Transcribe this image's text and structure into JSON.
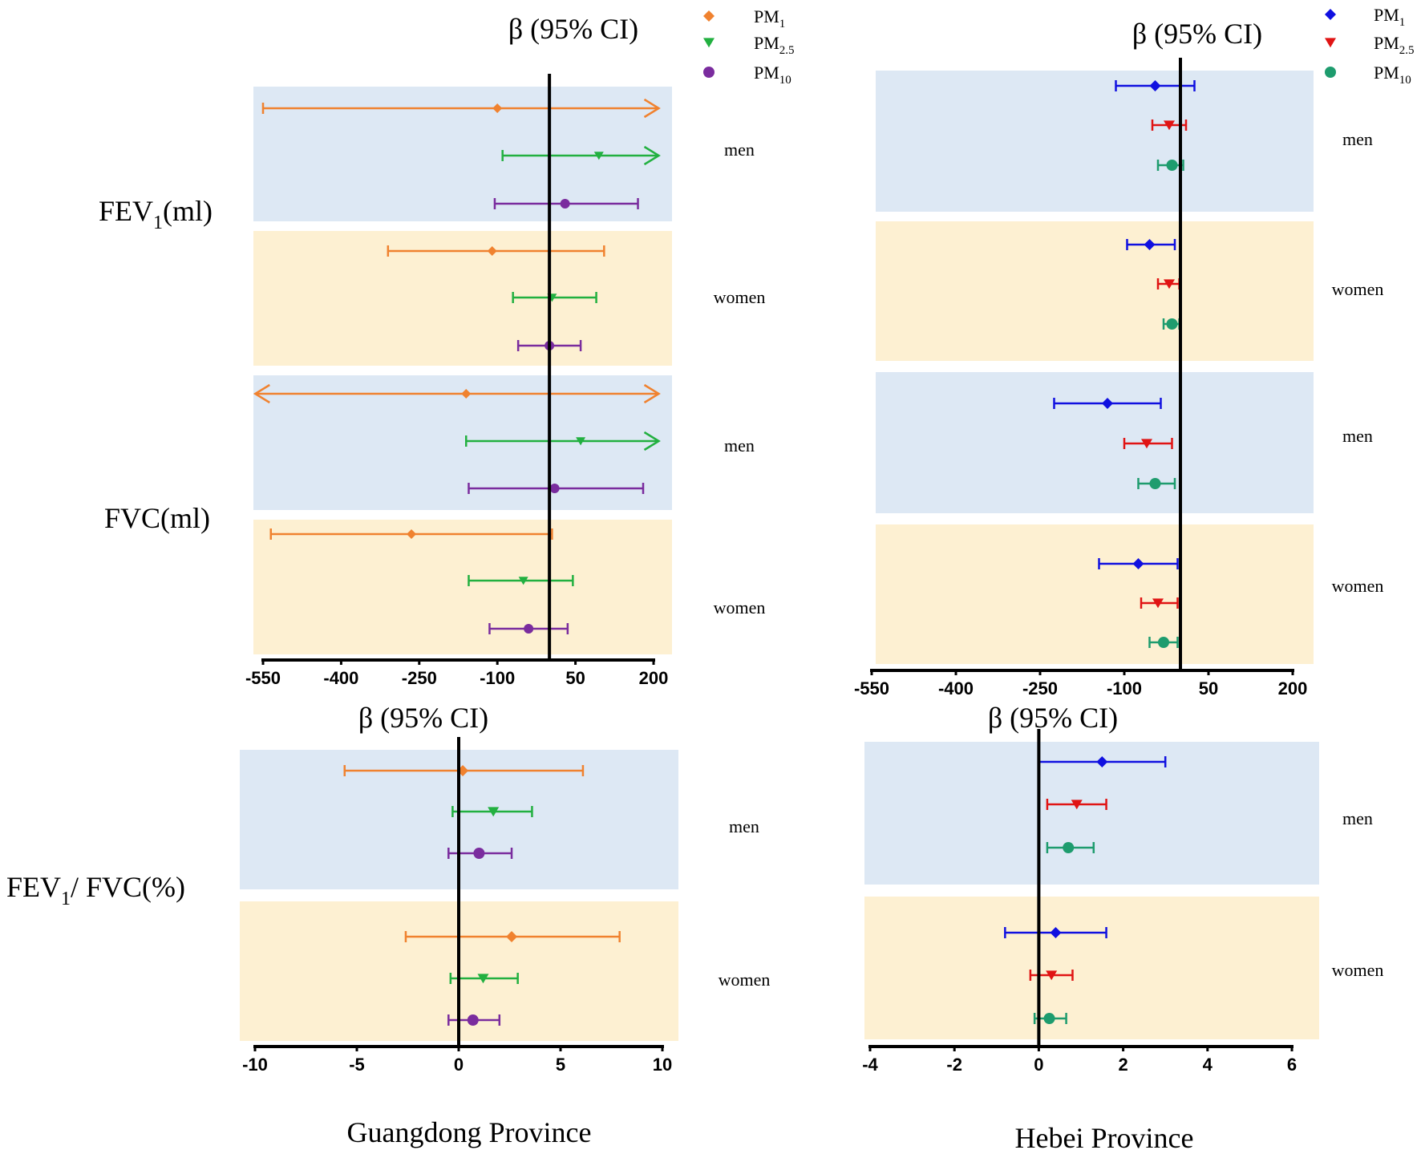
{
  "ci_title": "β (95% CI)",
  "group_labels": {
    "men": "men",
    "women": "women"
  },
  "colors": {
    "men_band": "#dde8f4",
    "women_band": "#fdf0d2",
    "guangdong": {
      "PM1": "#f0822f",
      "PM2.5": "#22b040",
      "PM10": "#7a2c9e"
    },
    "hebei": {
      "PM1": "#1010e0",
      "PM2.5": "#e01414",
      "PM10": "#1e9c6e"
    }
  },
  "legend": {
    "guangdong": [
      {
        "base": "PM",
        "sub": "1",
        "marker": "diamond"
      },
      {
        "base": "PM",
        "sub": "2.5",
        "marker": "triangle"
      },
      {
        "base": "PM",
        "sub": "10",
        "marker": "circle"
      }
    ],
    "hebei": [
      {
        "base": "PM",
        "sub": "1",
        "marker": "diamond"
      },
      {
        "base": "PM",
        "sub": "2.5",
        "marker": "triangle"
      },
      {
        "base": "PM",
        "sub": "10",
        "marker": "circle"
      }
    ]
  },
  "outcome_labels": {
    "fev1": {
      "base": "FEV",
      "sub": "1",
      "rest": "(ml)"
    },
    "fvc": {
      "text": "FVC(ml)"
    },
    "ratio": {
      "base": "FEV",
      "sub": "1",
      "rest": "/ FVC(%)"
    }
  },
  "province_labels": {
    "guangdong": "Guangdong Province",
    "hebei": "Hebei Province"
  },
  "chart_data": [
    {
      "type": "forest",
      "id": "guangdong_volume",
      "province": "Guangdong Province",
      "title": "β (95% CI)",
      "xlim": [
        -550,
        200
      ],
      "xticks": [
        -550,
        -400,
        -250,
        -100,
        50,
        200
      ],
      "reference_line": 0,
      "groups": [
        {
          "outcome": "FEV1(ml)",
          "sex": "men",
          "estimates": [
            {
              "pollutant": "PM1",
              "est": -100,
              "lo": -550,
              "hi": 210,
              "arrow_hi": true
            },
            {
              "pollutant": "PM2.5",
              "est": 95,
              "lo": -90,
              "hi": 210,
              "arrow_hi": true
            },
            {
              "pollutant": "PM10",
              "est": 30,
              "lo": -105,
              "hi": 170
            }
          ]
        },
        {
          "outcome": "FEV1(ml)",
          "sex": "women",
          "estimates": [
            {
              "pollutant": "PM1",
              "est": -110,
              "lo": -310,
              "hi": 105
            },
            {
              "pollutant": "PM2.5",
              "est": 5,
              "lo": -70,
              "hi": 90
            },
            {
              "pollutant": "PM10",
              "est": 0,
              "lo": -60,
              "hi": 60
            }
          ]
        },
        {
          "outcome": "FVC(ml)",
          "sex": "men",
          "estimates": [
            {
              "pollutant": "PM1",
              "est": -160,
              "lo": -565,
              "hi": 210,
              "arrow_lo": true,
              "arrow_hi": true
            },
            {
              "pollutant": "PM2.5",
              "est": 60,
              "lo": -160,
              "hi": 210,
              "arrow_hi": true
            },
            {
              "pollutant": "PM10",
              "est": 10,
              "lo": -155,
              "hi": 180
            }
          ]
        },
        {
          "outcome": "FVC(ml)",
          "sex": "women",
          "estimates": [
            {
              "pollutant": "PM1",
              "est": -265,
              "lo": -535,
              "hi": 5
            },
            {
              "pollutant": "PM2.5",
              "est": -50,
              "lo": -155,
              "hi": 45
            },
            {
              "pollutant": "PM10",
              "est": -40,
              "lo": -115,
              "hi": 35
            }
          ]
        }
      ]
    },
    {
      "type": "forest",
      "id": "hebei_volume",
      "province": "Hebei Province",
      "title": "β (95% CI)",
      "xlim": [
        -550,
        200
      ],
      "xticks": [
        -550,
        -400,
        -250,
        -100,
        50,
        200
      ],
      "reference_line": 0,
      "groups": [
        {
          "outcome": "FEV1(ml)",
          "sex": "men",
          "estimates": [
            {
              "pollutant": "PM1",
              "est": -45,
              "lo": -115,
              "hi": 25
            },
            {
              "pollutant": "PM2.5",
              "est": -20,
              "lo": -50,
              "hi": 10
            },
            {
              "pollutant": "PM10",
              "est": -15,
              "lo": -40,
              "hi": 5
            }
          ]
        },
        {
          "outcome": "FEV1(ml)",
          "sex": "women",
          "estimates": [
            {
              "pollutant": "PM1",
              "est": -55,
              "lo": -95,
              "hi": -10
            },
            {
              "pollutant": "PM2.5",
              "est": -20,
              "lo": -40,
              "hi": -2
            },
            {
              "pollutant": "PM10",
              "est": -15,
              "lo": -30,
              "hi": -2
            }
          ]
        },
        {
          "outcome": "FVC(ml)",
          "sex": "men",
          "estimates": [
            {
              "pollutant": "PM1",
              "est": -130,
              "lo": -225,
              "hi": -35
            },
            {
              "pollutant": "PM2.5",
              "est": -60,
              "lo": -100,
              "hi": -15
            },
            {
              "pollutant": "PM10",
              "est": -45,
              "lo": -75,
              "hi": -10
            }
          ]
        },
        {
          "outcome": "FVC(ml)",
          "sex": "women",
          "estimates": [
            {
              "pollutant": "PM1",
              "est": -75,
              "lo": -145,
              "hi": -5
            },
            {
              "pollutant": "PM2.5",
              "est": -40,
              "lo": -70,
              "hi": -5
            },
            {
              "pollutant": "PM10",
              "est": -30,
              "lo": -55,
              "hi": -5
            }
          ]
        }
      ]
    },
    {
      "type": "forest",
      "id": "guangdong_ratio",
      "province": "Guangdong Province",
      "title": "β (95% CI)",
      "xlim": [
        -10,
        10
      ],
      "xticks": [
        -10,
        -5,
        0,
        5,
        10
      ],
      "reference_line": 0,
      "groups": [
        {
          "outcome": "FEV1/ FVC(%)",
          "sex": "men",
          "estimates": [
            {
              "pollutant": "PM1",
              "est": 0.2,
              "lo": -5.6,
              "hi": 6.1
            },
            {
              "pollutant": "PM2.5",
              "est": 1.7,
              "lo": -0.3,
              "hi": 3.6
            },
            {
              "pollutant": "PM10",
              "est": 1.0,
              "lo": -0.5,
              "hi": 2.6
            }
          ]
        },
        {
          "outcome": "FEV1/ FVC(%)",
          "sex": "women",
          "estimates": [
            {
              "pollutant": "PM1",
              "est": 2.6,
              "lo": -2.6,
              "hi": 7.9
            },
            {
              "pollutant": "PM2.5",
              "est": 1.2,
              "lo": -0.4,
              "hi": 2.9
            },
            {
              "pollutant": "PM10",
              "est": 0.7,
              "lo": -0.5,
              "hi": 2.0
            }
          ]
        }
      ]
    },
    {
      "type": "forest",
      "id": "hebei_ratio",
      "province": "Hebei Province",
      "title": "β (95% CI)",
      "xlim": [
        -4,
        6
      ],
      "xticks": [
        -4,
        -2,
        0,
        2,
        4,
        6
      ],
      "reference_line": 0,
      "groups": [
        {
          "outcome": "FEV1/ FVC(%)",
          "sex": "men",
          "estimates": [
            {
              "pollutant": "PM1",
              "est": 1.5,
              "lo": 0.0,
              "hi": 3.0
            },
            {
              "pollutant": "PM2.5",
              "est": 0.9,
              "lo": 0.2,
              "hi": 1.6
            },
            {
              "pollutant": "PM10",
              "est": 0.7,
              "lo": 0.2,
              "hi": 1.3
            }
          ]
        },
        {
          "outcome": "FEV1/ FVC(%)",
          "sex": "women",
          "estimates": [
            {
              "pollutant": "PM1",
              "est": 0.4,
              "lo": -0.8,
              "hi": 1.6
            },
            {
              "pollutant": "PM2.5",
              "est": 0.3,
              "lo": -0.2,
              "hi": 0.8
            },
            {
              "pollutant": "PM10",
              "est": 0.25,
              "lo": -0.1,
              "hi": 0.65
            }
          ]
        }
      ]
    }
  ]
}
